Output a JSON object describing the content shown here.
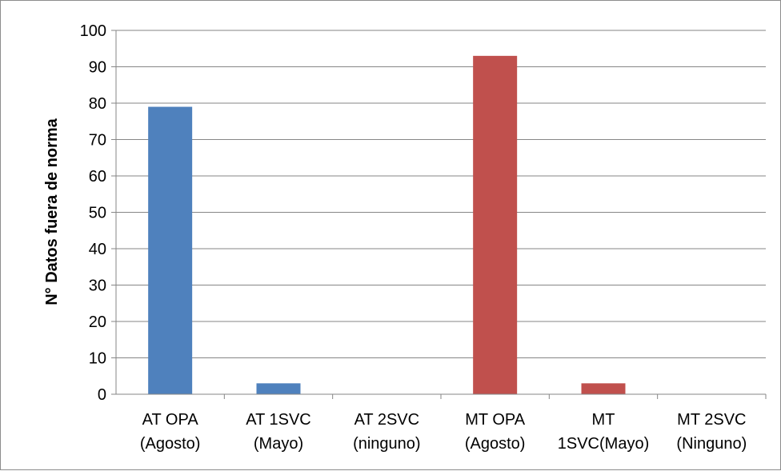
{
  "chart_data": {
    "type": "bar",
    "title": "",
    "xlabel": "",
    "ylabel": "N° Datos fuera de norma",
    "ylim": [
      0,
      100
    ],
    "yticks": [
      0,
      10,
      20,
      30,
      40,
      50,
      60,
      70,
      80,
      90,
      100
    ],
    "grid": true,
    "legend": "none",
    "categories": [
      [
        "AT OPA",
        "(Agosto)"
      ],
      [
        "AT 1SVC",
        "(Mayo)"
      ],
      [
        "AT 2SVC",
        "(ninguno)"
      ],
      [
        "MT OPA",
        "(Agosto)"
      ],
      [
        "MT",
        "1SVC(Mayo)"
      ],
      [
        "MT 2SVC",
        "(Ninguno)"
      ]
    ],
    "values": [
      79,
      3,
      0,
      93,
      3,
      0
    ],
    "bar_colors": [
      "#4f81bd",
      "#4f81bd",
      "#4f81bd",
      "#c0504d",
      "#c0504d",
      "#c0504d"
    ]
  }
}
